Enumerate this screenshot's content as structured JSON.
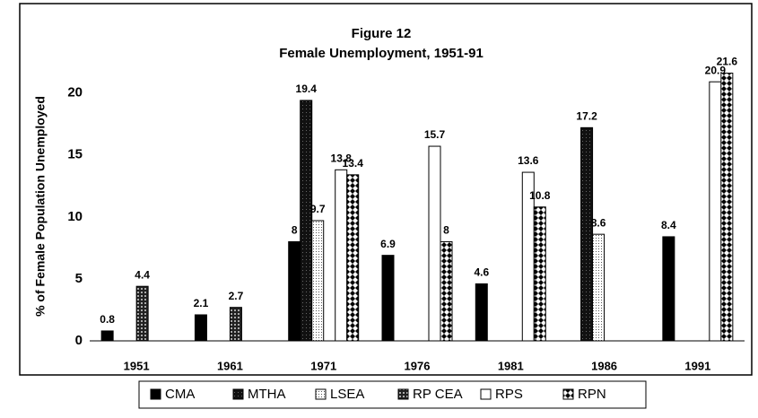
{
  "chart_data": {
    "type": "bar",
    "title": "Figure 12",
    "subtitle": "Female Unemployment, 1951-91",
    "y_label": "% of Female Population Unemployed",
    "categories": [
      "1951",
      "1961",
      "1971",
      "1976",
      "1981",
      "1986",
      "1991"
    ],
    "series": [
      {
        "name": "CMA",
        "color": "#000000",
        "pattern": "solid",
        "values": [
          0.8,
          2.1,
          8,
          6.9,
          4.6,
          null,
          8.4
        ]
      },
      {
        "name": "MTHA",
        "color": "#1a1a1a",
        "pattern": "speckle",
        "values": [
          null,
          null,
          19.4,
          null,
          null,
          17.2,
          null
        ]
      },
      {
        "name": "LSEA",
        "color": "#ffffff",
        "pattern": "dots",
        "values": [
          null,
          null,
          9.7,
          null,
          null,
          8.6,
          null
        ]
      },
      {
        "name": "RP CEA",
        "color": "#333333",
        "pattern": "grid",
        "values": [
          4.4,
          2.7,
          null,
          null,
          null,
          null,
          null
        ]
      },
      {
        "name": "RPS",
        "color": "#ffffff",
        "pattern": "solid",
        "values": [
          null,
          null,
          13.8,
          15.7,
          13.6,
          null,
          20.9
        ]
      },
      {
        "name": "RPN",
        "color": "#000000",
        "pattern": "checker",
        "values": [
          null,
          null,
          13.4,
          8,
          10.8,
          null,
          21.6
        ]
      }
    ],
    "ylim": [
      0,
      22
    ],
    "yticks": [
      0,
      5,
      10,
      15,
      20
    ],
    "grid": false,
    "legend": "bottom"
  }
}
